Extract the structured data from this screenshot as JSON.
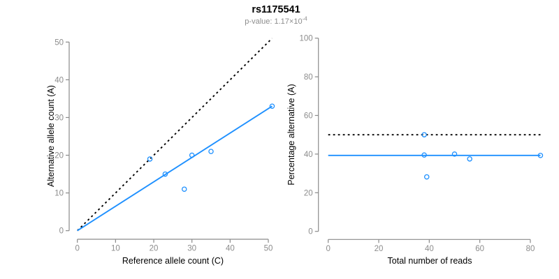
{
  "header": {
    "title": "rs1175541",
    "p_label": "p-value: 1.17×10",
    "p_exponent": "-4"
  },
  "colors": {
    "accent_blue": "#1E90FF",
    "line_black": "#000000",
    "axis_gray": "#8a8a8a",
    "tick_label_gray": "#8c8c8c",
    "title_color": "#000000",
    "subtitle_gray": "#8c8c8c"
  },
  "chart_data": [
    {
      "type": "scatter",
      "xlabel": "Reference allele count (C)",
      "ylabel": "Alternative allele count (A)",
      "xlim": [
        0,
        51
      ],
      "ylim": [
        0,
        51
      ],
      "xticks": [
        0,
        10,
        20,
        30,
        40,
        50
      ],
      "yticks": [
        0,
        10,
        20,
        30,
        40,
        50
      ],
      "grid": false,
      "points": [
        [
          19,
          19
        ],
        [
          23,
          15
        ],
        [
          28,
          11
        ],
        [
          30,
          20
        ],
        [
          35,
          21
        ],
        [
          51,
          33
        ]
      ],
      "lines": [
        {
          "name": "identity-line",
          "style": "dotted",
          "color": "#000000",
          "x1": 0,
          "y1": 0,
          "x2": 51,
          "y2": 51
        },
        {
          "name": "fit-line",
          "style": "solid",
          "color": "#1E90FF",
          "x1": 0,
          "y1": 0,
          "x2": 51,
          "y2": 33
        }
      ]
    },
    {
      "type": "scatter",
      "xlabel": "Total number of reads",
      "ylabel": "Percentage alternative (A)",
      "xlim": [
        0,
        85
      ],
      "ylim": [
        0,
        100
      ],
      "xticks": [
        0,
        20,
        40,
        60,
        80
      ],
      "yticks": [
        0,
        20,
        40,
        60,
        80,
        100
      ],
      "grid": false,
      "points": [
        [
          38,
          50
        ],
        [
          38,
          39.5
        ],
        [
          39,
          28.2
        ],
        [
          50,
          40
        ],
        [
          56,
          37.5
        ],
        [
          84,
          39.3
        ]
      ],
      "lines": [
        {
          "name": "fifty-percent-line",
          "style": "dotted",
          "color": "#000000",
          "x1": 0,
          "y1": 50,
          "x2": 85,
          "y2": 50
        },
        {
          "name": "mean-percentage-line",
          "style": "solid",
          "color": "#1E90FF",
          "x1": 0,
          "y1": 39.3,
          "x2": 84,
          "y2": 39.3
        }
      ]
    }
  ]
}
